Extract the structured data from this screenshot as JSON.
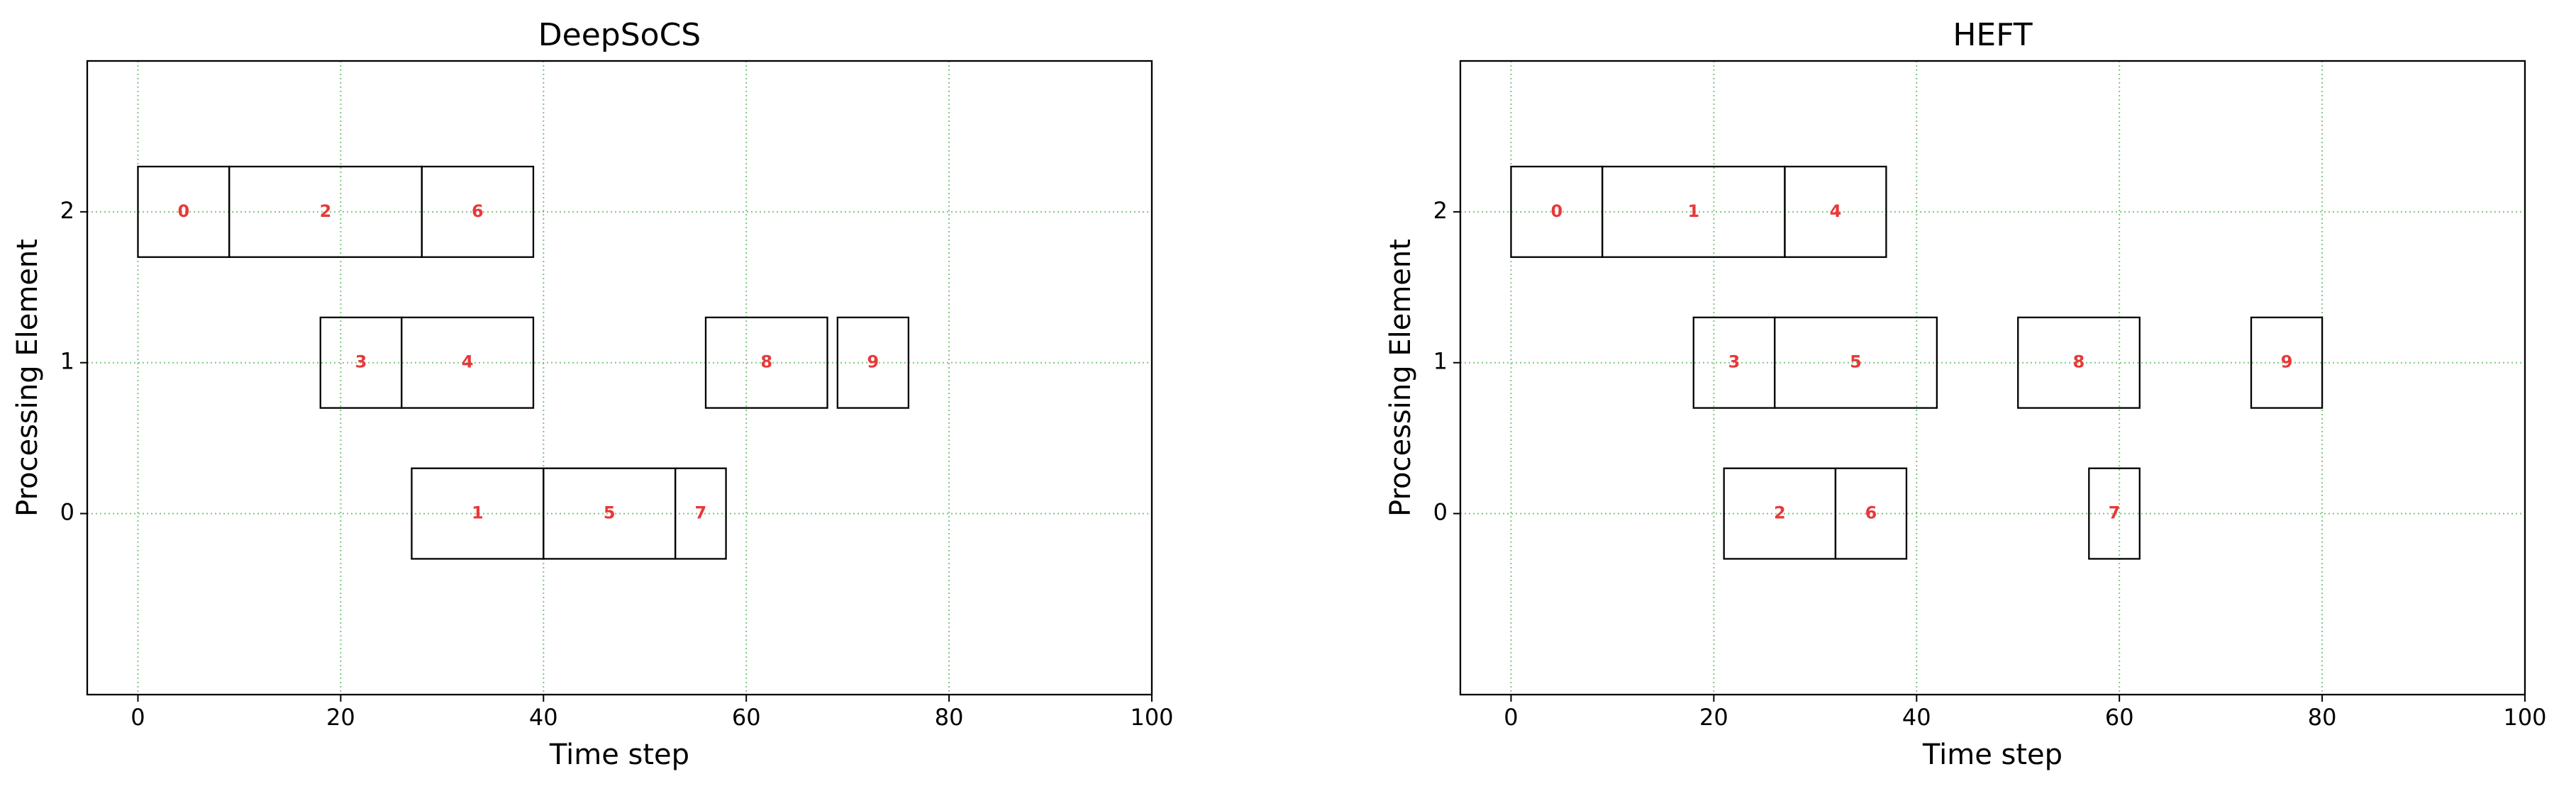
{
  "chart_data": [
    {
      "type": "gantt",
      "title": "DeepSoCS",
      "xlabel": "Time step",
      "ylabel": "Processing Element",
      "xlim": [
        -5,
        100
      ],
      "xticks": [
        0,
        20,
        40,
        60,
        80,
        100
      ],
      "ylim": [
        -1.2,
        3
      ],
      "yticks": [
        0,
        1,
        2
      ],
      "grid": true,
      "bar_height": 0.6,
      "edge_color": "#000000",
      "label_color": "#e8393a",
      "grid_color": "#5fb85f",
      "tasks": [
        {
          "label": "0",
          "pe": 2,
          "start": 0,
          "end": 9
        },
        {
          "label": "2",
          "pe": 2,
          "start": 9,
          "end": 28
        },
        {
          "label": "6",
          "pe": 2,
          "start": 28,
          "end": 39
        },
        {
          "label": "3",
          "pe": 1,
          "start": 18,
          "end": 26
        },
        {
          "label": "4",
          "pe": 1,
          "start": 26,
          "end": 39
        },
        {
          "label": "8",
          "pe": 1,
          "start": 56,
          "end": 68
        },
        {
          "label": "9",
          "pe": 1,
          "start": 69,
          "end": 76
        },
        {
          "label": "1",
          "pe": 0,
          "start": 27,
          "end": 40
        },
        {
          "label": "5",
          "pe": 0,
          "start": 40,
          "end": 53
        },
        {
          "label": "7",
          "pe": 0,
          "start": 53,
          "end": 58
        }
      ]
    },
    {
      "type": "gantt",
      "title": "HEFT",
      "xlabel": "Time step",
      "ylabel": "Processing Element",
      "xlim": [
        -5,
        100
      ],
      "xticks": [
        0,
        20,
        40,
        60,
        80,
        100
      ],
      "ylim": [
        -1.2,
        3
      ],
      "yticks": [
        0,
        1,
        2
      ],
      "grid": true,
      "bar_height": 0.6,
      "edge_color": "#000000",
      "label_color": "#e8393a",
      "grid_color": "#5fb85f",
      "tasks": [
        {
          "label": "0",
          "pe": 2,
          "start": 0,
          "end": 9
        },
        {
          "label": "1",
          "pe": 2,
          "start": 9,
          "end": 27
        },
        {
          "label": "4",
          "pe": 2,
          "start": 27,
          "end": 37
        },
        {
          "label": "3",
          "pe": 1,
          "start": 18,
          "end": 26
        },
        {
          "label": "5",
          "pe": 1,
          "start": 26,
          "end": 42
        },
        {
          "label": "8",
          "pe": 1,
          "start": 50,
          "end": 62
        },
        {
          "label": "9",
          "pe": 1,
          "start": 73,
          "end": 80
        },
        {
          "label": "2",
          "pe": 0,
          "start": 21,
          "end": 32
        },
        {
          "label": "6",
          "pe": 0,
          "start": 32,
          "end": 39
        },
        {
          "label": "7",
          "pe": 0,
          "start": 57,
          "end": 62
        }
      ]
    }
  ]
}
